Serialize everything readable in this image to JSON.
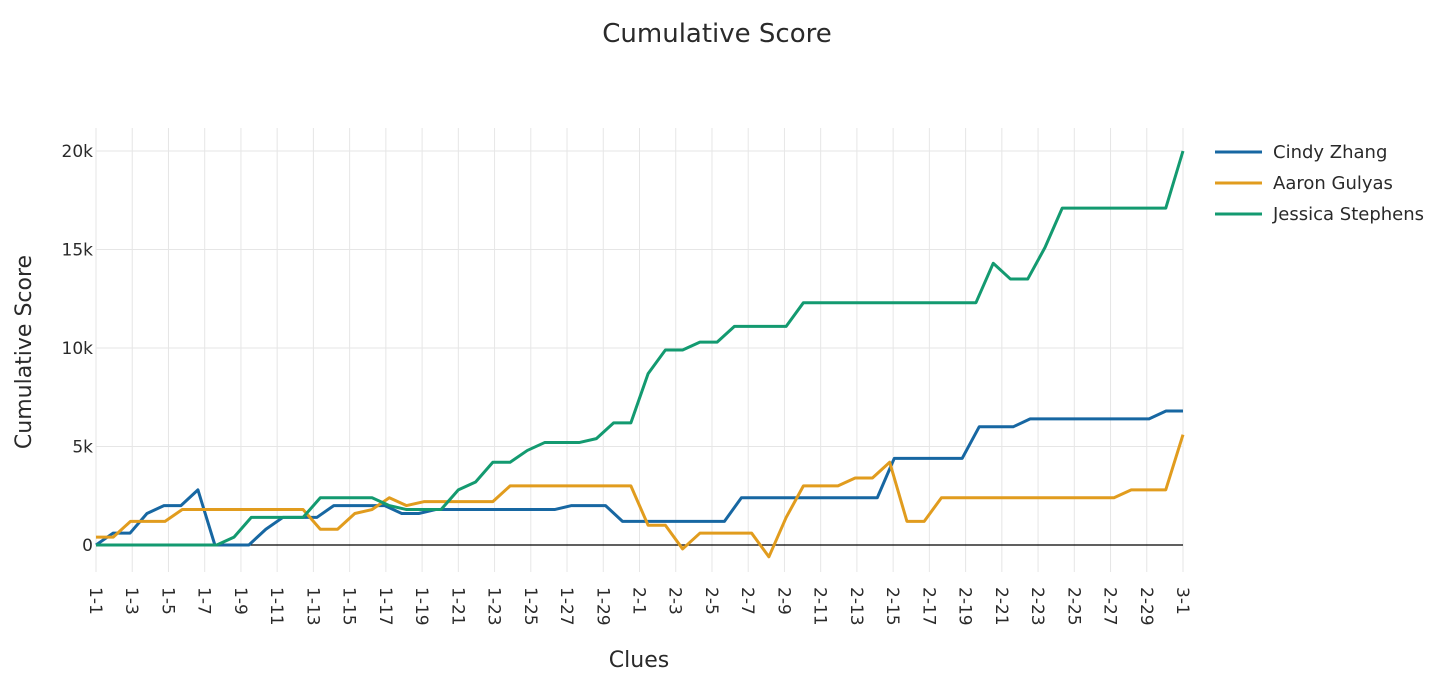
{
  "chart_data": {
    "type": "line",
    "title": "Cumulative Score",
    "xlabel": "Clues",
    "ylabel": "Cumulative Score",
    "x_tick_labels": [
      "1-1",
      "1-3",
      "1-5",
      "1-7",
      "1-9",
      "1-11",
      "1-13",
      "1-15",
      "1-17",
      "1-19",
      "1-21",
      "1-23",
      "1-25",
      "1-27",
      "1-29",
      "2-1",
      "2-3",
      "2-5",
      "2-7",
      "2-9",
      "2-11",
      "2-13",
      "2-15",
      "2-17",
      "2-19",
      "2-21",
      "2-23",
      "2-25",
      "2-27",
      "2-29",
      "3-1"
    ],
    "y_ticks": [
      0,
      5000,
      10000,
      15000,
      20000
    ],
    "y_tick_labels": [
      "0",
      "5k",
      "10k",
      "15k",
      "20k"
    ],
    "ylim": [
      -2200,
      21300
    ],
    "grid": true,
    "legend_position": "top-right",
    "series": [
      {
        "name": "Cindy Zhang",
        "color": "#1767a2",
        "values": [
          0,
          600,
          600,
          1600,
          2000,
          2000,
          2800,
          0,
          0,
          0,
          800,
          1400,
          1400,
          1400,
          2000,
          2000,
          2000,
          2000,
          1600,
          1600,
          1800,
          1800,
          1800,
          1800,
          1800,
          1800,
          1800,
          1800,
          2000,
          2000,
          2000,
          1200,
          1200,
          1200,
          1200,
          1200,
          1200,
          1200,
          2400,
          2400,
          2400,
          2400,
          2400,
          2400,
          2400,
          2400,
          2400,
          4400,
          4400,
          4400,
          4400,
          4400,
          6000,
          6000,
          6000,
          6400,
          6400,
          6400,
          6400,
          6400,
          6400,
          6400,
          6400,
          6800,
          6800
        ]
      },
      {
        "name": "Aaron Gulyas",
        "color": "#e19c1e",
        "values": [
          400,
          400,
          1200,
          1200,
          1200,
          1800,
          1800,
          1800,
          1800,
          1800,
          1800,
          1800,
          1800,
          800,
          800,
          1600,
          1800,
          2400,
          2000,
          2200,
          2200,
          2200,
          2200,
          2200,
          3000,
          3000,
          3000,
          3000,
          3000,
          3000,
          3000,
          3000,
          1000,
          1000,
          -200,
          600,
          600,
          600,
          600,
          -600,
          1400,
          3000,
          3000,
          3000,
          3400,
          3400,
          4200,
          1200,
          1200,
          2400,
          2400,
          2400,
          2400,
          2400,
          2400,
          2400,
          2400,
          2400,
          2400,
          2400,
          2800,
          2800,
          2800,
          5600
        ]
      },
      {
        "name": "Jessica Stephens",
        "color": "#139a70",
        "values": [
          0,
          0,
          0,
          0,
          0,
          0,
          0,
          0,
          400,
          1400,
          1400,
          1400,
          1400,
          2400,
          2400,
          2400,
          2400,
          2000,
          1800,
          1800,
          1800,
          2800,
          3200,
          4200,
          4200,
          4800,
          5200,
          5200,
          5200,
          5400,
          6200,
          6200,
          8700,
          9900,
          9900,
          10300,
          10300,
          11100,
          11100,
          11100,
          11100,
          12300,
          12300,
          12300,
          12300,
          12300,
          12300,
          12300,
          12300,
          12300,
          12300,
          12300,
          14300,
          13500,
          13500,
          15100,
          17100,
          17100,
          17100,
          17100,
          17100,
          17100,
          17100,
          20000
        ]
      }
    ]
  }
}
